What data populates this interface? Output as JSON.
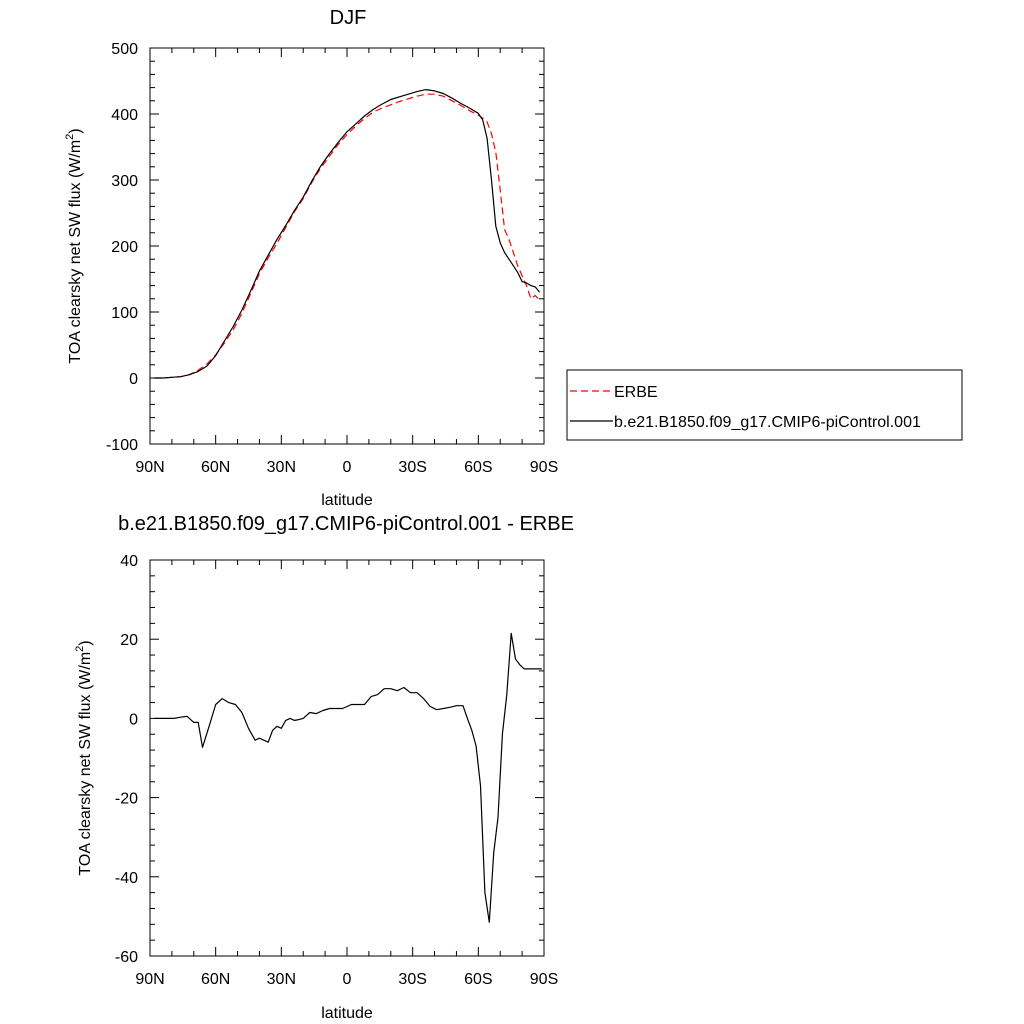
{
  "chart_data": [
    {
      "type": "line",
      "title": "DJF",
      "xlabel": "latitude",
      "ylabel_main": "TOA clearsky net SW flux (W/m",
      "ylabel_sup": "2",
      "ylabel_close": ")",
      "xlim": [
        -90,
        90
      ],
      "ylim": [
        -100,
        500
      ],
      "x_ticks": [
        {
          "value": -90,
          "label": "90N"
        },
        {
          "value": -60,
          "label": "60N"
        },
        {
          "value": -30,
          "label": "30N"
        },
        {
          "value": 0,
          "label": "0"
        },
        {
          "value": 30,
          "label": "30S"
        },
        {
          "value": 60,
          "label": "60S"
        },
        {
          "value": 90,
          "label": "90S"
        }
      ],
      "y_ticks": [
        -100,
        0,
        100,
        200,
        300,
        400,
        500
      ],
      "legend_position": "right",
      "series": [
        {
          "name": "ERBE",
          "color": "#ff0000",
          "dash": "dashed",
          "x": [
            -88,
            -84,
            -80,
            -76,
            -72,
            -68,
            -64,
            -60,
            -56,
            -52,
            -48,
            -44,
            -40,
            -36,
            -32,
            -28,
            -24,
            -20,
            -16,
            -12,
            -8,
            -4,
            0,
            4,
            8,
            12,
            16,
            20,
            24,
            28,
            32,
            36,
            40,
            44,
            48,
            52,
            56,
            60,
            62,
            64,
            66,
            68,
            70,
            72,
            74,
            76,
            78,
            80,
            82,
            84,
            86,
            88
          ],
          "y": [
            0,
            0,
            1,
            2,
            5,
            12,
            21,
            35,
            53,
            73,
            98,
            128,
            158,
            182,
            204,
            228,
            252,
            272,
            297,
            318,
            336,
            354,
            369,
            382,
            393,
            403,
            409,
            414,
            419,
            423,
            427,
            430,
            430,
            427,
            420,
            413,
            405,
            398,
            394,
            388,
            370,
            342,
            285,
            225,
            210,
            190,
            170,
            155,
            140,
            120,
            125,
            118
          ]
        },
        {
          "name": "b.e21.B1850.f09_g17.CMIP6-piControl.001",
          "color": "#000000",
          "dash": "solid",
          "x": [
            -88,
            -84,
            -80,
            -76,
            -72,
            -68,
            -64,
            -60,
            -56,
            -52,
            -48,
            -44,
            -40,
            -36,
            -32,
            -28,
            -24,
            -20,
            -16,
            -12,
            -8,
            -4,
            0,
            4,
            8,
            12,
            16,
            20,
            24,
            28,
            32,
            36,
            40,
            44,
            48,
            52,
            56,
            60,
            62,
            64,
            66,
            68,
            70,
            72,
            74,
            76,
            78,
            80,
            82,
            84,
            86,
            88
          ],
          "y": [
            0,
            0,
            1,
            2,
            5,
            10,
            18,
            34,
            56,
            78,
            103,
            132,
            162,
            186,
            210,
            231,
            254,
            274,
            299,
            321,
            340,
            357,
            373,
            385,
            397,
            407,
            415,
            422,
            426,
            430,
            434,
            437,
            435,
            431,
            424,
            416,
            409,
            401,
            391,
            363,
            300,
            230,
            205,
            190,
            180,
            170,
            160,
            146,
            144,
            140,
            138,
            130
          ]
        }
      ]
    },
    {
      "type": "line",
      "title": "b.e21.B1850.f09_g17.CMIP6-piControl.001 - ERBE",
      "xlabel": "latitude",
      "ylabel_main": "TOA clearsky net SW flux (W/m",
      "ylabel_sup": "2",
      "ylabel_close": ")",
      "xlim": [
        -90,
        90
      ],
      "ylim": [
        -60,
        40
      ],
      "x_ticks": [
        {
          "value": -90,
          "label": "90N"
        },
        {
          "value": -60,
          "label": "60N"
        },
        {
          "value": -30,
          "label": "30N"
        },
        {
          "value": 0,
          "label": "0"
        },
        {
          "value": 30,
          "label": "30S"
        },
        {
          "value": 60,
          "label": "60S"
        },
        {
          "value": 90,
          "label": "90S"
        }
      ],
      "y_ticks": [
        -60,
        -40,
        -20,
        0,
        20,
        40
      ],
      "series": [
        {
          "color": "#000000",
          "dash": "solid",
          "x": [
            -88,
            -85,
            -82,
            -79,
            -76,
            -73,
            -70,
            -68,
            -66,
            -63,
            -60,
            -57,
            -54,
            -51,
            -48,
            -45,
            -42,
            -40,
            -38,
            -36,
            -34,
            -32,
            -30,
            -28,
            -26,
            -24,
            -22,
            -20,
            -17,
            -14,
            -11,
            -8,
            -5,
            -2,
            0,
            2,
            5,
            8,
            11,
            14,
            17,
            20,
            23,
            26,
            29,
            32,
            35,
            38,
            41,
            44,
            47,
            50,
            53,
            55,
            57,
            59,
            61,
            63,
            65,
            67,
            69,
            71,
            73,
            75,
            77,
            79,
            81,
            83,
            85,
            87,
            89
          ],
          "y": [
            0,
            0,
            0,
            0,
            0.3,
            0.5,
            -1,
            -1,
            -7.3,
            -2,
            3.5,
            5,
            4,
            3.5,
            1.5,
            -2.5,
            -5.5,
            -5,
            -5.5,
            -6,
            -3,
            -2,
            -2.5,
            -0.5,
            0,
            -0.5,
            -0.3,
            0,
            1.5,
            1.2,
            2,
            2.5,
            2.5,
            2.5,
            3,
            3.5,
            3.5,
            3.5,
            5.5,
            6,
            7.5,
            7.5,
            7,
            7.8,
            6.5,
            6.5,
            5,
            3,
            2.2,
            2.5,
            2.8,
            3.2,
            3.2,
            0,
            -3,
            -7,
            -17,
            -44,
            -51.5,
            -34,
            -25,
            -4,
            6,
            21.5,
            15,
            13.5,
            12.5,
            12.5,
            12.5,
            12.5,
            12.5
          ]
        }
      ]
    }
  ],
  "legend": {
    "items": [
      {
        "label": "ERBE",
        "color": "#ff0000",
        "dash": "dashed"
      },
      {
        "label": "b.e21.B1850.f09_g17.CMIP6-piControl.001",
        "color": "#000000",
        "dash": "solid"
      }
    ]
  }
}
